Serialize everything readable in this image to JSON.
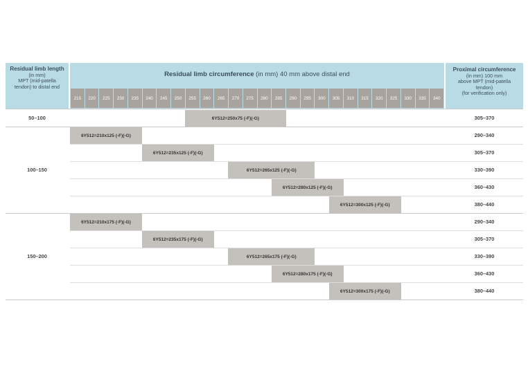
{
  "header": {
    "left": {
      "title": "Residual limb length",
      "lines": [
        "(in mm)",
        "MPT (mid-patella",
        "tendon) to distal end"
      ]
    },
    "middle": {
      "title_bold": "Residual limb circumference",
      "title_rest": " (in mm) 40 mm above distal end"
    },
    "right": {
      "title": "Proximal circumference",
      "lines": [
        "(in mm) 100 mm",
        "above MPT (mid-patella",
        "tendon)",
        "(for verification only)"
      ]
    },
    "sizes": [
      "215",
      "220",
      "225",
      "230",
      "235",
      "240",
      "245",
      "250",
      "255",
      "260",
      "265",
      "270",
      "275",
      "280",
      "285",
      "290",
      "295",
      "300",
      "305",
      "310",
      "315",
      "320",
      "325",
      "330",
      "335",
      "340"
    ]
  },
  "groups": [
    {
      "label": "50–100",
      "rows": [
        {
          "model": "6Y512=250x75 (-F)(-G)",
          "proximal": "305–370",
          "from": "255",
          "to": "285"
        }
      ]
    },
    {
      "label": "100–150",
      "rows": [
        {
          "model": "6Y512=210x125 (-F)(-G)",
          "proximal": "290–340",
          "from": "215",
          "to": "235"
        },
        {
          "model": "6Y512=235x125 (-F)(-G)",
          "proximal": "305–370",
          "from": "240",
          "to": "260"
        },
        {
          "model": "6Y512=265x125 (-F)(-G)",
          "proximal": "330–390",
          "from": "270",
          "to": "295"
        },
        {
          "model": "6Y512=280x125 (-F)(-G)",
          "proximal": "360–430",
          "from": "285",
          "to": "305"
        },
        {
          "model": "6Y512=300x125 (-F)(-G)",
          "proximal": "380–440",
          "from": "305",
          "to": "325"
        }
      ]
    },
    {
      "label": "150–200",
      "rows": [
        {
          "model": "6Y512=210x175 (-F)(-G)",
          "proximal": "290–340",
          "from": "215",
          "to": "235"
        },
        {
          "model": "6Y512=235x175 (-F)(-G)",
          "proximal": "305–370",
          "from": "240",
          "to": "260"
        },
        {
          "model": "6Y512=265x175 (-F)(-G)",
          "proximal": "330–390",
          "from": "270",
          "to": "295"
        },
        {
          "model": "6Y512=280x175 (-F)(-G)",
          "proximal": "360–430",
          "from": "285",
          "to": "305"
        },
        {
          "model": "6Y512=300x175 (-F)(-G)",
          "proximal": "380–440",
          "from": "305",
          "to": "325"
        }
      ]
    }
  ]
}
